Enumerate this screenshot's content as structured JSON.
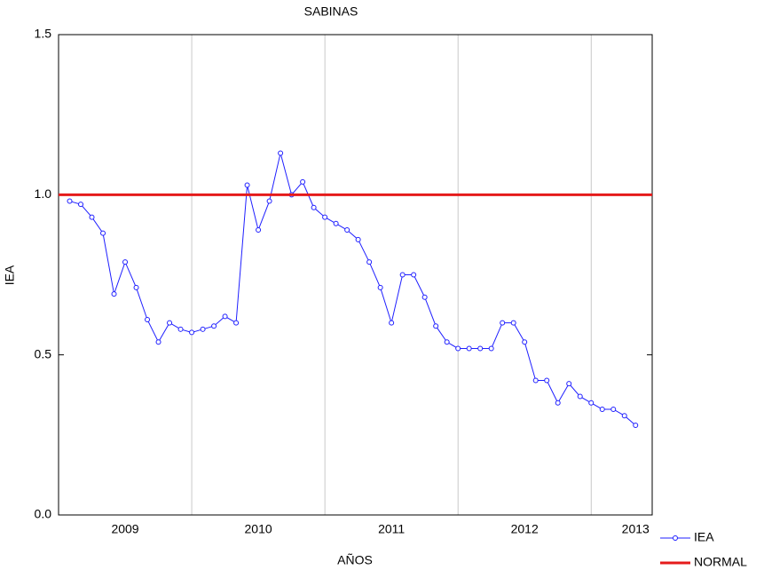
{
  "chart_data": {
    "type": "line",
    "title": "SABINAS",
    "x_label": "AÑOS",
    "y_label": "IEA",
    "xlim": [
      0,
      53.5
    ],
    "xticks": [
      {
        "value": 6,
        "label": "2009"
      },
      {
        "value": 18,
        "label": "2010"
      },
      {
        "value": 30,
        "label": "2011"
      },
      {
        "value": 42,
        "label": "2012"
      },
      {
        "value": 52,
        "label": "2013"
      }
    ],
    "xgrid_ticks": [
      12,
      24,
      36,
      48
    ],
    "ylim": [
      0,
      1.5
    ],
    "yticks": [
      {
        "value": 0,
        "label": "0.0"
      },
      0.5,
      {
        "value": 1,
        "label": "1.0"
      },
      1.5
    ],
    "legend": "outside-bottom-right",
    "series": [
      {
        "name": "IEA",
        "color": "#1f1fff",
        "markers": true,
        "x": [
          1,
          2,
          3,
          4,
          5,
          6,
          7,
          8,
          9,
          10,
          11,
          12,
          13,
          14,
          15,
          16,
          17,
          18,
          19,
          20,
          21,
          22,
          23,
          24,
          25,
          26,
          27,
          28,
          29,
          30,
          31,
          32,
          33,
          34,
          35,
          36,
          37,
          38,
          39,
          40,
          41,
          42,
          43,
          44,
          45,
          46,
          47,
          48,
          49,
          50,
          51,
          52
        ],
        "values": [
          0.98,
          0.97,
          0.93,
          0.88,
          0.69,
          0.79,
          0.71,
          0.61,
          0.54,
          0.6,
          0.58,
          0.57,
          0.58,
          0.59,
          0.62,
          0.6,
          1.03,
          0.89,
          0.98,
          1.13,
          1.0,
          1.04,
          0.96,
          0.93,
          0.91,
          0.89,
          0.86,
          0.79,
          0.71,
          0.6,
          0.75,
          0.75,
          0.68,
          0.59,
          0.54,
          0.52,
          0.52,
          0.52,
          0.52,
          0.6,
          0.6,
          0.54,
          0.42,
          0.42,
          0.35,
          0.41,
          0.37,
          0.35,
          0.33,
          0.33,
          0.31,
          0.28
        ]
      },
      {
        "name": "NORMAL",
        "color": "#e51b1b",
        "markers": false,
        "x": [
          0,
          53.5
        ],
        "values": [
          1.0,
          1.0
        ]
      }
    ]
  }
}
